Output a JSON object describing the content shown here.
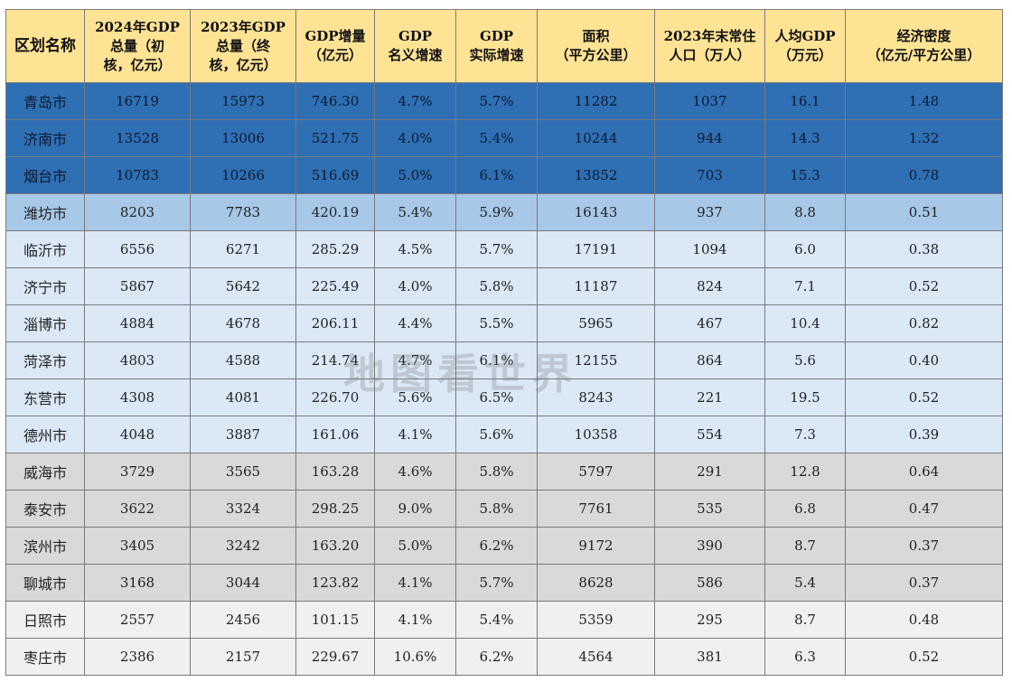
{
  "table": {
    "headers": [
      [
        "区划名称"
      ],
      [
        "2024年GDP",
        "总量（初",
        "核，亿元）"
      ],
      [
        "2023年GDP",
        "总量（终",
        "核，亿元）"
      ],
      [
        "GDP增量",
        "（亿元）"
      ],
      [
        "GDP",
        "名义增速"
      ],
      [
        "GDP",
        "实际增速"
      ],
      [
        "面积",
        "（平方公里）"
      ],
      [
        "2023年末常住",
        "人口（万人）"
      ],
      [
        "人均GDP",
        "（万元）"
      ],
      [
        "经济密度",
        "（亿元/平方公里）"
      ]
    ],
    "rows": [
      {
        "tier": 1,
        "cells": [
          "青岛市",
          "16719",
          "15973",
          "746.30",
          "4.7%",
          "5.7%",
          "11282",
          "1037",
          "16.1",
          "1.48"
        ]
      },
      {
        "tier": 1,
        "cells": [
          "济南市",
          "13528",
          "13006",
          "521.75",
          "4.0%",
          "5.4%",
          "10244",
          "944",
          "14.3",
          "1.32"
        ]
      },
      {
        "tier": 1,
        "cells": [
          "烟台市",
          "10783",
          "10266",
          "516.69",
          "5.0%",
          "6.1%",
          "13852",
          "703",
          "15.3",
          "0.78"
        ]
      },
      {
        "tier": 2,
        "cells": [
          "潍坊市",
          "8203",
          "7783",
          "420.19",
          "5.4%",
          "5.9%",
          "16143",
          "937",
          "8.8",
          "0.51"
        ]
      },
      {
        "tier": 3,
        "cells": [
          "临沂市",
          "6556",
          "6271",
          "285.29",
          "4.5%",
          "5.7%",
          "17191",
          "1094",
          "6.0",
          "0.38"
        ]
      },
      {
        "tier": 3,
        "cells": [
          "济宁市",
          "5867",
          "5642",
          "225.49",
          "4.0%",
          "5.8%",
          "11187",
          "824",
          "7.1",
          "0.52"
        ]
      },
      {
        "tier": 3,
        "cells": [
          "淄博市",
          "4884",
          "4678",
          "206.11",
          "4.4%",
          "5.5%",
          "5965",
          "467",
          "10.4",
          "0.82"
        ]
      },
      {
        "tier": 3,
        "cells": [
          "菏泽市",
          "4803",
          "4588",
          "214.74",
          "4.7%",
          "6.1%",
          "12155",
          "864",
          "5.6",
          "0.40"
        ]
      },
      {
        "tier": 3,
        "cells": [
          "东营市",
          "4308",
          "4081",
          "226.70",
          "5.6%",
          "6.5%",
          "8243",
          "221",
          "19.5",
          "0.52"
        ]
      },
      {
        "tier": 3,
        "cells": [
          "德州市",
          "4048",
          "3887",
          "161.06",
          "4.1%",
          "5.6%",
          "10358",
          "554",
          "7.3",
          "0.39"
        ]
      },
      {
        "tier": 4,
        "cells": [
          "威海市",
          "3729",
          "3565",
          "163.28",
          "4.6%",
          "5.8%",
          "5797",
          "291",
          "12.8",
          "0.64"
        ]
      },
      {
        "tier": 4,
        "cells": [
          "泰安市",
          "3622",
          "3324",
          "298.25",
          "9.0%",
          "5.8%",
          "7761",
          "535",
          "6.8",
          "0.47"
        ]
      },
      {
        "tier": 4,
        "cells": [
          "滨州市",
          "3405",
          "3242",
          "163.20",
          "5.0%",
          "6.2%",
          "9172",
          "390",
          "8.7",
          "0.37"
        ]
      },
      {
        "tier": 4,
        "cells": [
          "聊城市",
          "3168",
          "3044",
          "123.82",
          "4.1%",
          "5.7%",
          "8628",
          "586",
          "5.4",
          "0.37"
        ]
      },
      {
        "tier": 5,
        "cells": [
          "日照市",
          "2557",
          "2456",
          "101.15",
          "4.1%",
          "5.4%",
          "5359",
          "295",
          "8.7",
          "0.48"
        ]
      },
      {
        "tier": 5,
        "cells": [
          "枣庄市",
          "2386",
          "2157",
          "229.67",
          "10.6%",
          "6.2%",
          "4564",
          "381",
          "6.3",
          "0.52"
        ]
      }
    ]
  },
  "watermark": "地图看世界",
  "colors": {
    "header": "#ffe395",
    "tier1": "#2f6fb4",
    "tier2": "#a8c8e8",
    "tier3": "#dbe8f6",
    "tier4": "#d9d9d9",
    "tier5": "#f0f0f0",
    "grid": "#7a7a7a"
  }
}
